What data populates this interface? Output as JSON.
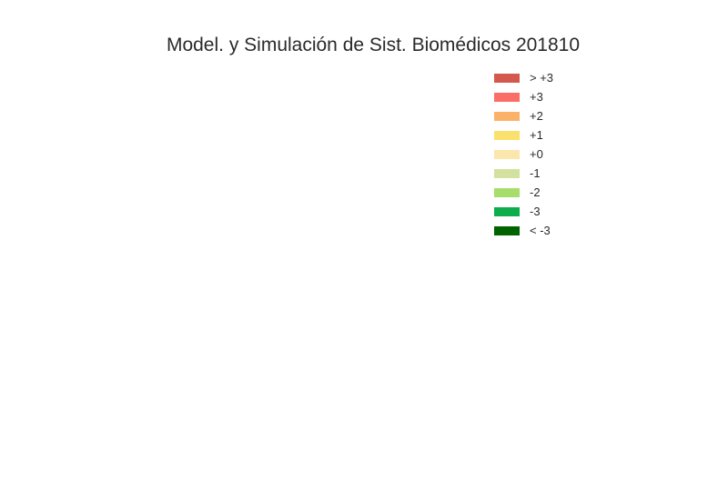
{
  "chart_data": {
    "type": "bar",
    "title": "Model. y Simulación de Sist. Biomédicos 201810",
    "xlabel": "",
    "ylabel": "",
    "categories": [],
    "series": [],
    "grid": false,
    "legend_position": "top-right",
    "legend": [
      {
        "label": "> +3",
        "color": "#d5584e"
      },
      {
        "label": "+3",
        "color": "#fb6e65"
      },
      {
        "label": "+2",
        "color": "#fbb268"
      },
      {
        "label": "+1",
        "color": "#fae16e"
      },
      {
        "label": "+0",
        "color": "#fbe6ab"
      },
      {
        "label": "-1",
        "color": "#d3e1a0"
      },
      {
        "label": "-2",
        "color": "#a7dd6b"
      },
      {
        "label": "-3",
        "color": "#0dad4d"
      },
      {
        "label": "< -3",
        "color": "#006300"
      }
    ]
  }
}
